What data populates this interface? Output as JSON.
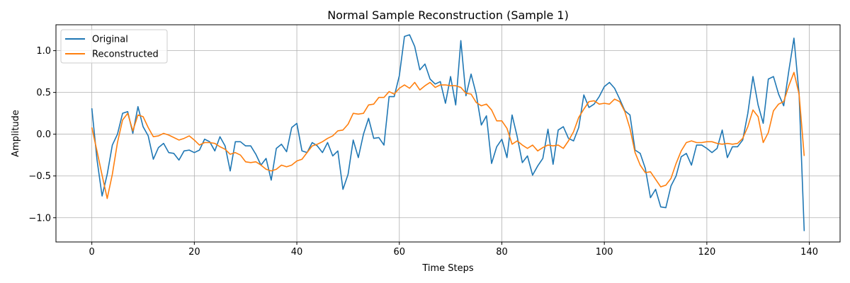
{
  "chart_data": {
    "type": "line",
    "title": "Normal Sample Reconstruction (Sample 1)",
    "xlabel": "Time Steps",
    "ylabel": "Amplitude",
    "xlim": [
      -7,
      146
    ],
    "ylim": [
      -1.29,
      1.31
    ],
    "xticks": [
      0,
      20,
      40,
      60,
      80,
      100,
      120,
      140
    ],
    "yticks": [
      -1.0,
      -0.5,
      0.0,
      0.5,
      1.0
    ],
    "xtick_labels": [
      "0",
      "20",
      "40",
      "60",
      "80",
      "100",
      "120",
      "140"
    ],
    "ytick_labels": [
      "−1.0",
      "−0.5",
      "0.0",
      "0.5",
      "1.0"
    ],
    "grid": true,
    "legend_position": "upper-left",
    "series": [
      {
        "name": "Original",
        "color": "#1f77b4",
        "values": [
          0.31,
          -0.3,
          -0.74,
          -0.48,
          -0.13,
          0.0,
          0.25,
          0.27,
          0.01,
          0.33,
          0.09,
          -0.02,
          -0.3,
          -0.16,
          -0.11,
          -0.22,
          -0.23,
          -0.31,
          -0.2,
          -0.19,
          -0.22,
          -0.19,
          -0.06,
          -0.09,
          -0.2,
          -0.03,
          -0.14,
          -0.44,
          -0.09,
          -0.09,
          -0.14,
          -0.14,
          -0.24,
          -0.37,
          -0.29,
          -0.55,
          -0.17,
          -0.12,
          -0.21,
          0.08,
          0.13,
          -0.2,
          -0.22,
          -0.1,
          -0.14,
          -0.22,
          -0.1,
          -0.26,
          -0.2,
          -0.66,
          -0.48,
          -0.07,
          -0.28,
          0.0,
          0.19,
          -0.05,
          -0.04,
          -0.13,
          0.45,
          0.45,
          0.7,
          1.17,
          1.19,
          1.05,
          0.77,
          0.84,
          0.66,
          0.6,
          0.63,
          0.37,
          0.69,
          0.35,
          1.12,
          0.46,
          0.72,
          0.48,
          0.11,
          0.22,
          -0.35,
          -0.15,
          -0.06,
          -0.28,
          0.23,
          -0.03,
          -0.34,
          -0.26,
          -0.49,
          -0.38,
          -0.29,
          0.06,
          -0.36,
          0.05,
          0.09,
          -0.05,
          -0.08,
          0.08,
          0.47,
          0.32,
          0.36,
          0.45,
          0.57,
          0.62,
          0.55,
          0.42,
          0.28,
          0.23,
          -0.19,
          -0.23,
          -0.41,
          -0.76,
          -0.66,
          -0.87,
          -0.88,
          -0.62,
          -0.5,
          -0.27,
          -0.23,
          -0.37,
          -0.13,
          -0.13,
          -0.17,
          -0.22,
          -0.17,
          0.05,
          -0.28,
          -0.15,
          -0.15,
          -0.07,
          0.25,
          0.69,
          0.35,
          0.13,
          0.66,
          0.69,
          0.48,
          0.34,
          0.76,
          1.15,
          0.48,
          -1.16
        ]
      },
      {
        "name": "Reconstructed",
        "color": "#ff7f0e",
        "values": [
          0.08,
          -0.2,
          -0.49,
          -0.77,
          -0.48,
          -0.1,
          0.17,
          0.25,
          0.04,
          0.23,
          0.21,
          0.08,
          -0.03,
          -0.02,
          0.01,
          -0.01,
          -0.04,
          -0.07,
          -0.05,
          -0.02,
          -0.07,
          -0.13,
          -0.1,
          -0.1,
          -0.11,
          -0.15,
          -0.18,
          -0.24,
          -0.22,
          -0.25,
          -0.33,
          -0.34,
          -0.33,
          -0.37,
          -0.42,
          -0.44,
          -0.42,
          -0.37,
          -0.39,
          -0.37,
          -0.32,
          -0.3,
          -0.22,
          -0.14,
          -0.12,
          -0.09,
          -0.05,
          -0.02,
          0.04,
          0.05,
          0.12,
          0.25,
          0.24,
          0.25,
          0.35,
          0.36,
          0.44,
          0.44,
          0.51,
          0.48,
          0.55,
          0.59,
          0.55,
          0.62,
          0.53,
          0.58,
          0.62,
          0.56,
          0.59,
          0.59,
          0.58,
          0.58,
          0.56,
          0.49,
          0.48,
          0.38,
          0.34,
          0.36,
          0.29,
          0.16,
          0.16,
          0.07,
          -0.12,
          -0.08,
          -0.13,
          -0.17,
          -0.13,
          -0.2,
          -0.16,
          -0.13,
          -0.14,
          -0.13,
          -0.17,
          -0.08,
          0.03,
          0.2,
          0.3,
          0.39,
          0.4,
          0.36,
          0.37,
          0.36,
          0.42,
          0.39,
          0.27,
          0.07,
          -0.22,
          -0.37,
          -0.46,
          -0.45,
          -0.54,
          -0.63,
          -0.61,
          -0.53,
          -0.35,
          -0.2,
          -0.1,
          -0.08,
          -0.1,
          -0.1,
          -0.09,
          -0.09,
          -0.11,
          -0.12,
          -0.11,
          -0.12,
          -0.11,
          -0.05,
          0.09,
          0.29,
          0.21,
          -0.1,
          0.02,
          0.28,
          0.36,
          0.39,
          0.58,
          0.74,
          0.48,
          -0.26
        ]
      }
    ]
  }
}
